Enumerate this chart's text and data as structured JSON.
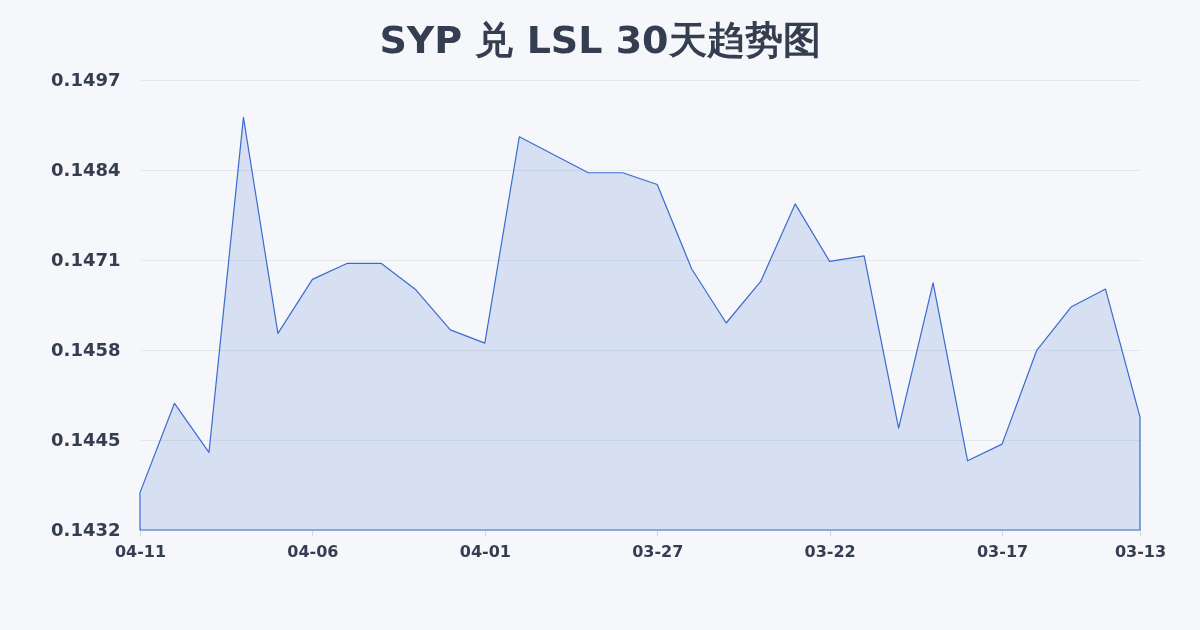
{
  "chart_data": {
    "type": "area",
    "title": "SYP 兑 LSL 30天趋势图",
    "categories": [
      "04-11",
      null,
      null,
      null,
      null,
      "04-06",
      null,
      null,
      null,
      null,
      "04-01",
      null,
      null,
      null,
      null,
      "03-27",
      null,
      null,
      null,
      null,
      "03-22",
      null,
      null,
      null,
      null,
      "03-17",
      null,
      null,
      null,
      "03-13"
    ],
    "series": [
      {
        "color": "#3b6bd0",
        "values": [
          0.14374,
          0.14503,
          0.14432,
          0.14916,
          0.14604,
          0.14682,
          0.14705,
          0.14705,
          0.14667,
          0.14609,
          0.1459,
          0.14888,
          0.14862,
          0.14836,
          0.14836,
          0.14819,
          0.14697,
          0.14619,
          0.14679,
          0.14791,
          0.14708,
          0.14716,
          0.14467,
          0.14677,
          0.1442,
          0.14444,
          0.14579,
          0.14642,
          0.14668,
          0.14483
        ]
      }
    ],
    "ylim": [
      0.1432,
      0.1497
    ],
    "yticks": [
      0.1432,
      0.1445,
      0.1458,
      0.1471,
      0.1484,
      0.1497
    ],
    "grid": "y"
  }
}
